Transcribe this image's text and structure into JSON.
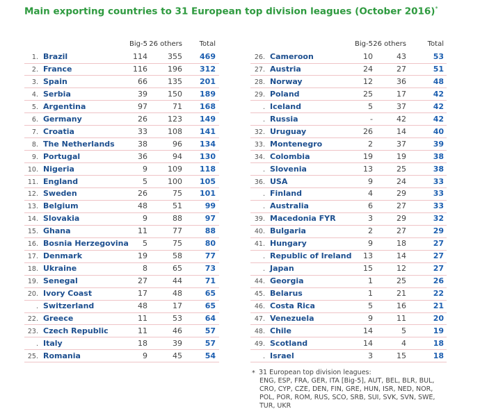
{
  "title": "Main exporting countries to 31 European top division leagues (October 2016)",
  "title_mark": "*",
  "headers": [
    "Big-5",
    "26 others",
    "Total"
  ],
  "left_rows": [
    [
      "1.",
      "Brazil",
      114,
      355,
      469
    ],
    [
      "2.",
      "France",
      116,
      196,
      312
    ],
    [
      "3.",
      "Spain",
      66,
      135,
      201
    ],
    [
      "4.",
      "Serbia",
      39,
      150,
      189
    ],
    [
      "5.",
      "Argentina",
      97,
      71,
      168
    ],
    [
      "6.",
      "Germany",
      26,
      123,
      149
    ],
    [
      "7.",
      "Croatia",
      33,
      108,
      141
    ],
    [
      "8.",
      "The Netherlands",
      38,
      96,
      134
    ],
    [
      "9.",
      "Portugal",
      36,
      94,
      130
    ],
    [
      "10.",
      "Nigeria",
      9,
      109,
      118
    ],
    [
      "11.",
      "England",
      5,
      100,
      105
    ],
    [
      "12.",
      "Sweden",
      26,
      75,
      101
    ],
    [
      "13.",
      "Belgium",
      48,
      51,
      99
    ],
    [
      "14.",
      "Slovakia",
      9,
      88,
      97
    ],
    [
      "15.",
      "Ghana",
      11,
      77,
      88
    ],
    [
      "16.",
      "Bosnia Herzegovina",
      5,
      75,
      80
    ],
    [
      "17.",
      "Denmark",
      19,
      58,
      77
    ],
    [
      "18.",
      "Ukraine",
      8,
      65,
      73
    ],
    [
      "19.",
      "Senegal",
      27,
      44,
      71
    ],
    [
      "20.",
      "Ivory Coast",
      17,
      48,
      65
    ],
    [
      ".",
      "Switzerland",
      48,
      17,
      65
    ],
    [
      "22.",
      "Greece",
      11,
      53,
      64
    ],
    [
      "23.",
      "Czech Republic",
      11,
      46,
      57
    ],
    [
      ".",
      "Italy",
      18,
      39,
      57
    ],
    [
      "25.",
      "Romania",
      9,
      45,
      54
    ]
  ],
  "right_rows": [
    [
      "26.",
      "Cameroon",
      10,
      43,
      53
    ],
    [
      "27.",
      "Austria",
      24,
      27,
      51
    ],
    [
      "28.",
      "Norway",
      12,
      36,
      48
    ],
    [
      "29.",
      "Poland",
      25,
      17,
      42
    ],
    [
      ".",
      "Iceland",
      5,
      37,
      42
    ],
    [
      ".",
      "Russia",
      "-",
      42,
      42
    ],
    [
      "32.",
      "Uruguay",
      26,
      14,
      40
    ],
    [
      "33.",
      "Montenegro",
      2,
      37,
      39
    ],
    [
      "34.",
      "Colombia",
      19,
      19,
      38
    ],
    [
      ".",
      "Slovenia",
      13,
      25,
      38
    ],
    [
      "36.",
      "USA",
      9,
      24,
      33
    ],
    [
      ".",
      "Finland",
      4,
      29,
      33
    ],
    [
      ".",
      "Australia",
      6,
      27,
      33
    ],
    [
      "39.",
      "Macedonia FYR",
      3,
      29,
      32
    ],
    [
      "40.",
      "Bulgaria",
      2,
      27,
      29
    ],
    [
      "41.",
      "Hungary",
      9,
      18,
      27
    ],
    [
      ".",
      "Republic of Ireland",
      13,
      14,
      27
    ],
    [
      ".",
      "Japan",
      15,
      12,
      27
    ],
    [
      "44.",
      "Georgia",
      1,
      25,
      26
    ],
    [
      "45.",
      "Belarus",
      1,
      21,
      22
    ],
    [
      "46.",
      "Costa Rica",
      5,
      16,
      21
    ],
    [
      "47.",
      "Venezuela",
      9,
      11,
      20
    ],
    [
      "48.",
      "Chile",
      14,
      5,
      19
    ],
    [
      "49.",
      "Scotland",
      14,
      4,
      18
    ],
    [
      ".",
      "Israel",
      3,
      15,
      18
    ]
  ],
  "footnote": {
    "mark": "*",
    "lines": [
      "31 European top division leagues:",
      "ENG, ESP, FRA, GER, ITA [Big-5], AUT, BEL, BLR, BUL,",
      "CRO, CYP, CZE, DEN, FIN, GRE, HUN, ISR, NED, NOR,",
      "POL, POR, ROM, RUS, SCO, SRB, SUI, SVK, SVN, SWE,",
      "TUR, UKR"
    ]
  }
}
